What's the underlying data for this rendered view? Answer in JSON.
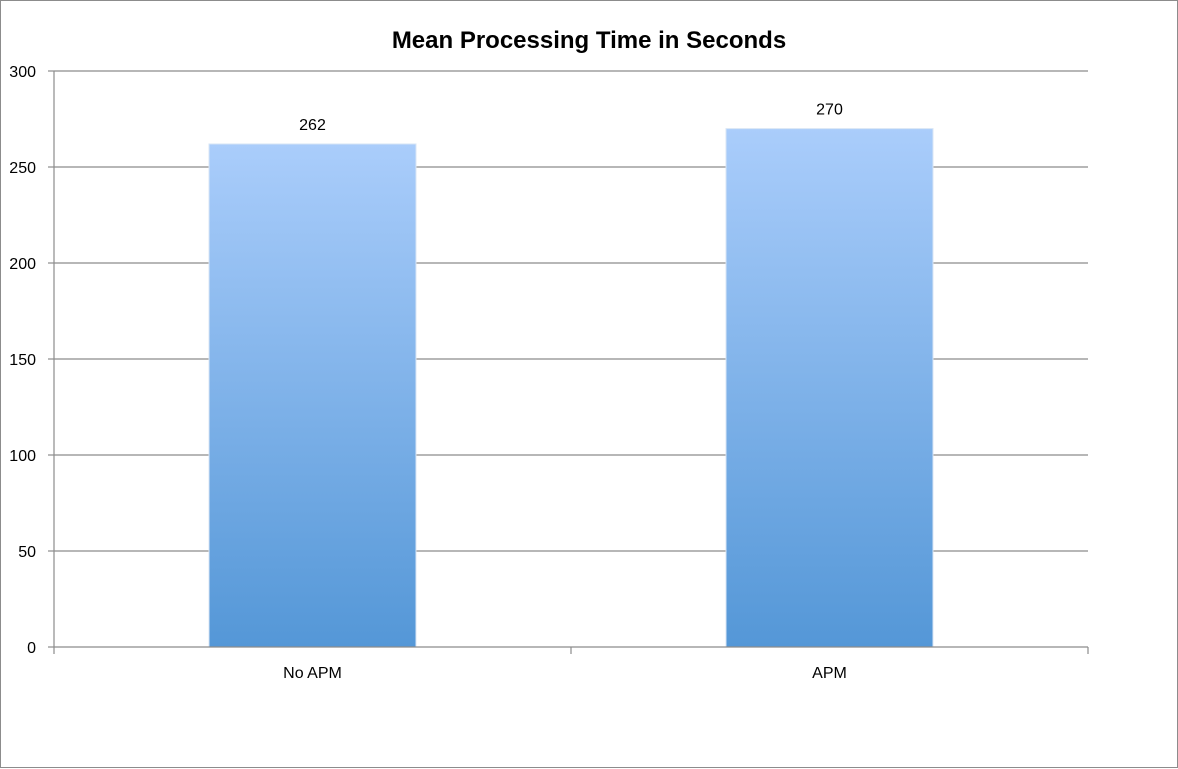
{
  "chart_data": {
    "type": "bar",
    "title": "Mean Processing Time in Seconds",
    "xlabel": "",
    "ylabel": "",
    "categories": [
      "No APM",
      "APM"
    ],
    "values": [
      262,
      270
    ],
    "data_labels": [
      "262",
      "270"
    ],
    "ylim": [
      0,
      300
    ],
    "yticks": [
      0,
      50,
      100,
      150,
      200,
      250,
      300
    ],
    "ytick_labels": [
      "0",
      "50",
      "100",
      "150",
      "200",
      "250",
      "300"
    ],
    "grid": true,
    "legend": "none",
    "colors": {
      "bar_top": "#aacdfb",
      "bar_bottom": "#5497d7",
      "grid": "#8c8c8c"
    }
  }
}
